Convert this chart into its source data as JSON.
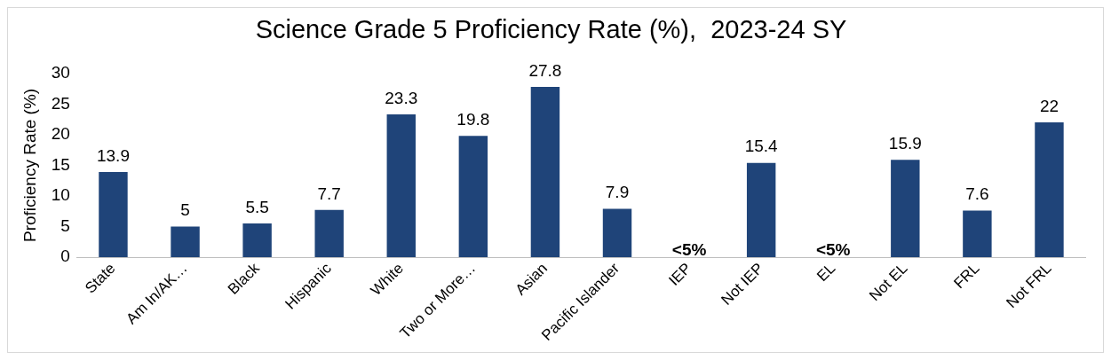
{
  "chart_data": {
    "type": "bar",
    "title": "Science Grade 5 Proficiency Rate (%),  2023-24 SY",
    "ylabel": "Proficiency Rate (%)",
    "categories": [
      "State",
      "Am In/AK…",
      "Black",
      "Hispanic",
      "White",
      "Two or More…",
      "Asian",
      "Pacific Islander",
      "IEP",
      "Not IEP",
      "EL",
      "Not EL",
      "FRL",
      "Not FRL"
    ],
    "values": [
      13.9,
      5,
      5.5,
      7.7,
      23.3,
      19.8,
      27.8,
      7.9,
      null,
      15.4,
      null,
      15.9,
      7.6,
      22
    ],
    "value_labels": [
      "13.9",
      "5",
      "5.5",
      "7.7",
      "23.3",
      "19.8",
      "27.8",
      "7.9",
      "<5%",
      "15.4",
      "<5%",
      "15.9",
      "7.6",
      "22"
    ],
    "color": "#1f4479",
    "ylim": [
      0,
      30
    ],
    "yticks": [
      0,
      5,
      10,
      15,
      20,
      25,
      30
    ],
    "grid": false,
    "legend": false
  }
}
